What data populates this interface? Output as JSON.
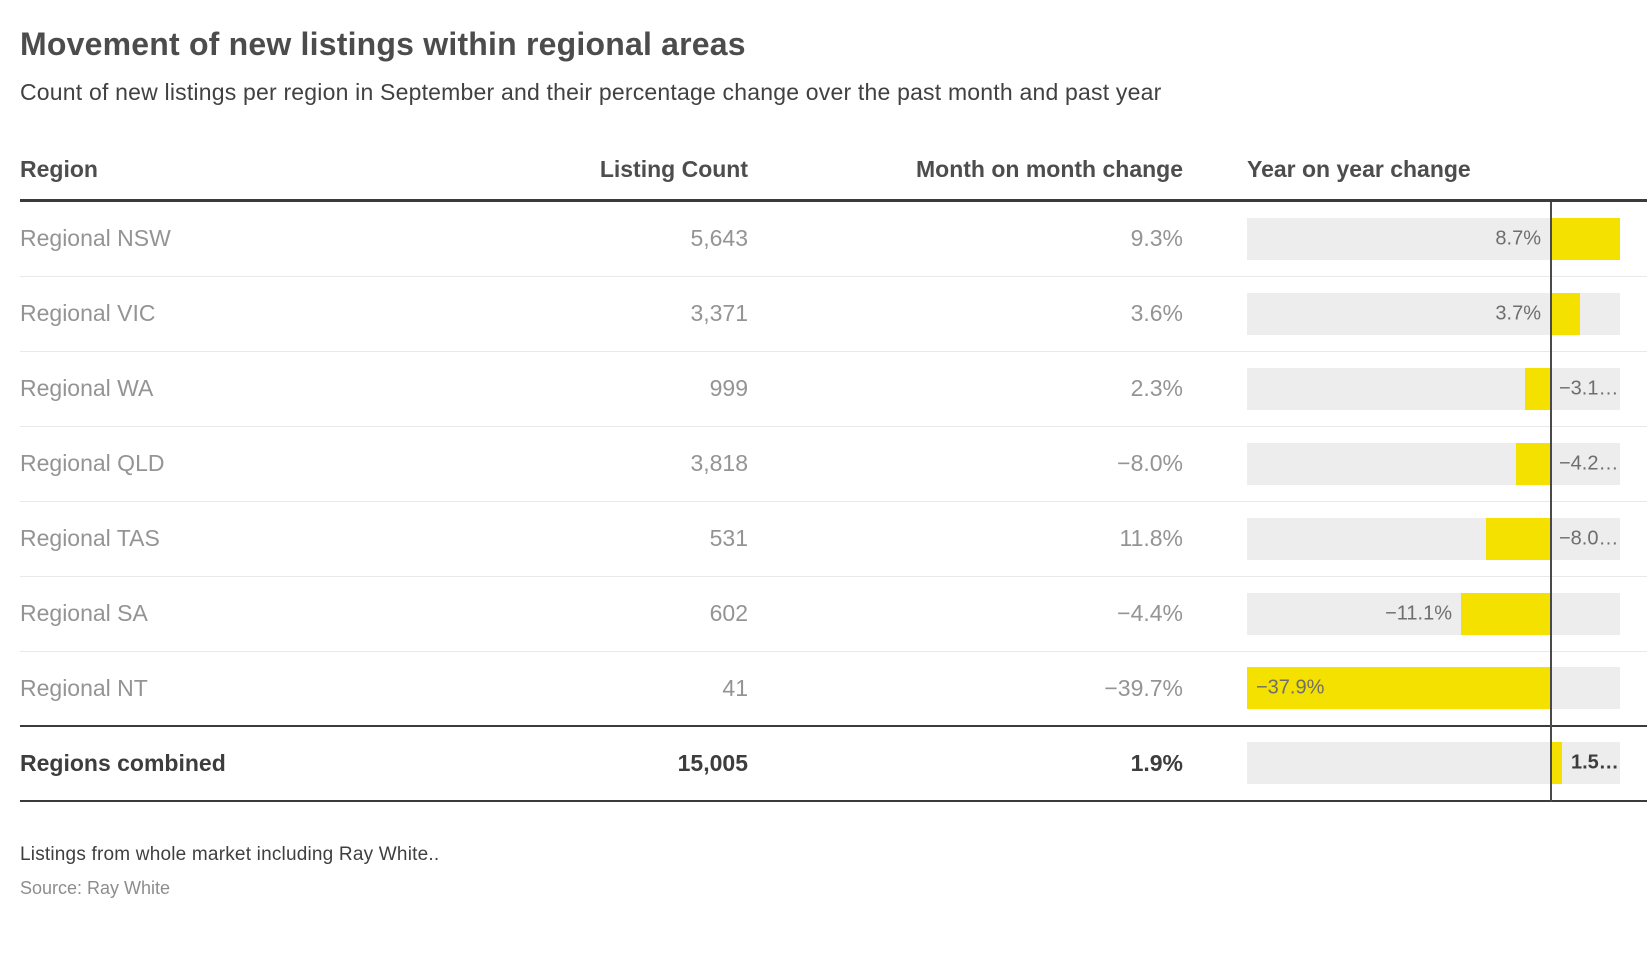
{
  "title": "Movement of new listings within regional areas",
  "subtitle": "Count of new listings per region in September and their percentage change over the past month and past year",
  "columns": {
    "region": "Region",
    "listing_count": "Listing Count",
    "mom": "Month on month change",
    "yoy": "Year on year change"
  },
  "rows": [
    {
      "region": "Regional NSW",
      "count": "5,643",
      "mom": "9.3%",
      "yoy_value": 8.7,
      "yoy_label": "8.7%",
      "label_pos": "left-of-axis",
      "bold": false,
      "thick_divider_below": false
    },
    {
      "region": "Regional VIC",
      "count": "3,371",
      "mom": "3.6%",
      "yoy_value": 3.7,
      "yoy_label": "3.7%",
      "label_pos": "left-of-axis",
      "bold": false,
      "thick_divider_below": false
    },
    {
      "region": "Regional WA",
      "count": "999",
      "mom": "2.3%",
      "yoy_value": -3.1,
      "yoy_label": "−3.1…",
      "label_pos": "right-of-axis",
      "bold": false,
      "thick_divider_below": false
    },
    {
      "region": "Regional QLD",
      "count": "3,818",
      "mom": "−8.0%",
      "yoy_value": -4.2,
      "yoy_label": "−4.2…",
      "label_pos": "right-of-axis",
      "bold": false,
      "thick_divider_below": false
    },
    {
      "region": "Regional TAS",
      "count": "531",
      "mom": "11.8%",
      "yoy_value": -8.0,
      "yoy_label": "−8.0…",
      "label_pos": "right-of-axis",
      "bold": false,
      "thick_divider_below": false
    },
    {
      "region": "Regional SA",
      "count": "602",
      "mom": "−4.4%",
      "yoy_value": -11.1,
      "yoy_label": "−11.1%",
      "label_pos": "left-of-bar",
      "bold": false,
      "thick_divider_below": false
    },
    {
      "region": "Regional NT",
      "count": "41",
      "mom": "−39.7%",
      "yoy_value": -37.9,
      "yoy_label": "−37.9%",
      "label_pos": "inside-bar-left",
      "bold": false,
      "thick_divider_below": true
    },
    {
      "region": "Regions combined",
      "count": "15,005",
      "mom": "1.9%",
      "yoy_value": 1.5,
      "yoy_label": "1.5…",
      "label_pos": "right-of-bar",
      "bold": true,
      "thick_divider_below": false
    }
  ],
  "footnote": "Listings from whole market including Ray White..",
  "source": "Source: Ray White",
  "colors": {
    "bar_yellow": "#f4e100",
    "track_gray": "#ededed",
    "rule_dark": "#3b3b3b",
    "axis_line": "#4a4a4a",
    "row_text": "#949494",
    "header_text": "#4d4d4d"
  },
  "chart_data": {
    "type": "table",
    "title": "Movement of new listings within regional areas",
    "subtitle": "Count of new listings per region in September and their percentage change over the past month and past year",
    "columns": [
      "Region",
      "Listing Count",
      "Month on month change",
      "Year on year change"
    ],
    "categories": [
      "Regional NSW",
      "Regional VIC",
      "Regional WA",
      "Regional QLD",
      "Regional TAS",
      "Regional SA",
      "Regional NT",
      "Regions combined"
    ],
    "series": [
      {
        "name": "Listing Count",
        "values": [
          5643,
          3371,
          999,
          3818,
          531,
          602,
          41,
          15005
        ]
      },
      {
        "name": "Month on month change (%)",
        "values": [
          9.3,
          3.6,
          2.3,
          -8.0,
          11.8,
          -4.4,
          -39.7,
          1.9
        ]
      },
      {
        "name": "Year on year change (%)",
        "values": [
          8.7,
          3.7,
          -3.1,
          -4.2,
          -8.0,
          -11.1,
          -37.9,
          1.5
        ]
      }
    ],
    "bar_chart": {
      "embedded_in_column": "Year on year change",
      "subtype": "bar",
      "axis_min": -37.9,
      "axis_max": 8.7,
      "zero_line": true,
      "bar_color": "#f4e100",
      "track_color": "#ededed"
    }
  }
}
